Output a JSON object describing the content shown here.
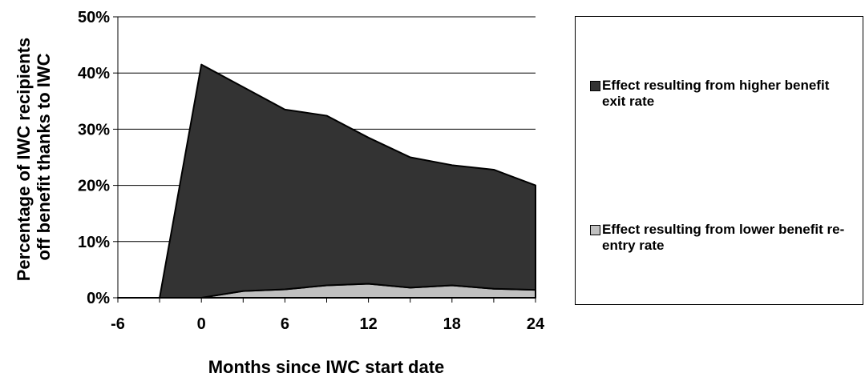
{
  "chart_data": {
    "type": "area",
    "stacked": true,
    "x": [
      -6,
      -3,
      0,
      3,
      6,
      9,
      12,
      15,
      18,
      21,
      24
    ],
    "x_ticks": [
      -6,
      0,
      6,
      12,
      18,
      24
    ],
    "x_tick_labels": [
      "-6",
      "0",
      "6",
      "12",
      "18",
      "24"
    ],
    "y_ticks": [
      0,
      10,
      20,
      30,
      40,
      50
    ],
    "y_tick_labels": [
      "0%",
      "10%",
      "20%",
      "30%",
      "40%",
      "50%"
    ],
    "xlim": [
      -6,
      24
    ],
    "ylim": [
      0,
      50
    ],
    "xlabel": "Months since IWC start date",
    "ylabel": "Percentage of IWC recipients off benefit thanks to IWC",
    "ylabel_lines": [
      "Percentage of IWC recipients",
      "off benefit thanks to IWC"
    ],
    "grid": "horizontal",
    "legend_position": "right",
    "series": [
      {
        "name": "Effect resulting from lower benefit re-entry rate",
        "color": "#c0c0c0",
        "values": [
          0,
          0,
          0,
          1.2,
          1.5,
          2.2,
          2.5,
          1.8,
          2.2,
          1.6,
          1.4
        ]
      },
      {
        "name": "Effect resulting from higher benefit exit rate",
        "color": "#333333",
        "values": [
          0,
          0,
          41.5,
          36.3,
          32.0,
          30.2,
          26.0,
          23.2,
          21.4,
          21.2,
          18.6
        ]
      }
    ]
  },
  "legend": [
    {
      "label": "Effect resulting from higher benefit exit rate",
      "color": "#333333"
    },
    {
      "label": "Effect resulting from lower benefit re-entry rate",
      "color": "#c0c0c0"
    }
  ]
}
